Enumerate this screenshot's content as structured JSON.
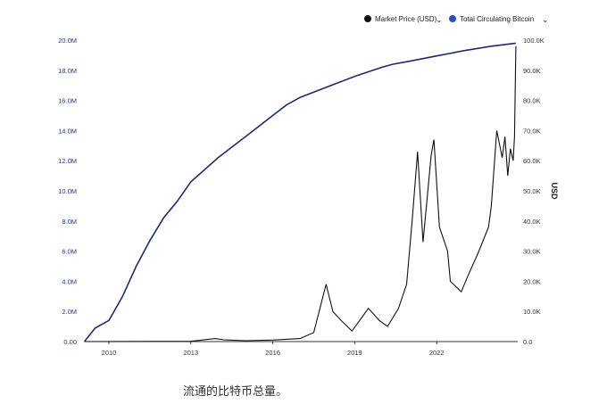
{
  "chart_data": {
    "type": "line",
    "caption": "流通的比特币总量。",
    "legend": [
      {
        "name": "Market Price (USD)",
        "color": "#111111"
      },
      {
        "name": "Total Circulating Bitcoin",
        "color": "#2b49c8"
      }
    ],
    "legend_position": "top-right",
    "x_ticks": [
      "2010",
      "2013",
      "2016",
      "2019",
      "2022"
    ],
    "x_tick_values": [
      2010,
      2013,
      2016,
      2019,
      2022
    ],
    "xlim": [
      2009.1,
      2024.9
    ],
    "y_left": {
      "ticks": [
        "0.00",
        "2.0M",
        "4.0M",
        "6.0M",
        "8.0M",
        "10.0M",
        "12.0M",
        "14.0M",
        "16.0M",
        "18.0M",
        "20.0M"
      ],
      "lim": [
        0,
        20
      ]
    },
    "y_right": {
      "label": "USD",
      "ticks": [
        "0.0",
        "10.0K",
        "20.0K",
        "30.0K",
        "40.0K",
        "50.0K",
        "60.0K",
        "70.0K",
        "80.0K",
        "90.0K",
        "100.0K"
      ],
      "lim": [
        0,
        100
      ]
    },
    "series": [
      {
        "name": "Total Circulating Bitcoin",
        "axis": "left",
        "unit": "M BTC",
        "color": "#1f2a6e",
        "x": [
          2009.1,
          2009.5,
          2010,
          2010.5,
          2011,
          2011.5,
          2012,
          2012.5,
          2013,
          2014,
          2015,
          2016,
          2016.5,
          2017,
          2018,
          2019,
          2020,
          2020.4,
          2021,
          2022,
          2023,
          2024,
          2024.9
        ],
        "y": [
          0,
          0.9,
          1.4,
          3.0,
          5.0,
          6.7,
          8.2,
          9.3,
          10.6,
          12.2,
          13.6,
          15.0,
          15.7,
          16.2,
          16.9,
          17.6,
          18.2,
          18.4,
          18.6,
          18.95,
          19.3,
          19.6,
          19.8
        ]
      },
      {
        "name": "Market Price (USD)",
        "axis": "right",
        "unit": "K USD",
        "color": "#111111",
        "x": [
          2009.1,
          2013,
          2013.9,
          2014.2,
          2015,
          2016,
          2017,
          2017.5,
          2017.95,
          2018.2,
          2018.5,
          2018.9,
          2019.5,
          2019.9,
          2020.2,
          2020.6,
          2020.9,
          2021.1,
          2021.3,
          2021.5,
          2021.8,
          2021.9,
          2022.1,
          2022.4,
          2022.5,
          2022.9,
          2023.2,
          2023.5,
          2023.9,
          2024.0,
          2024.2,
          2024.4,
          2024.5,
          2024.6,
          2024.7,
          2024.8,
          2024.85,
          2024.9
        ],
        "y": [
          0,
          0.1,
          1.0,
          0.6,
          0.3,
          0.5,
          1.0,
          3,
          19,
          10,
          7,
          3.5,
          11,
          7,
          5,
          11,
          19,
          40,
          63,
          33,
          62,
          67,
          38,
          30,
          20,
          16.5,
          23,
          29,
          38,
          45,
          70,
          61,
          68,
          55,
          64,
          60,
          68,
          98
        ]
      }
    ]
  }
}
